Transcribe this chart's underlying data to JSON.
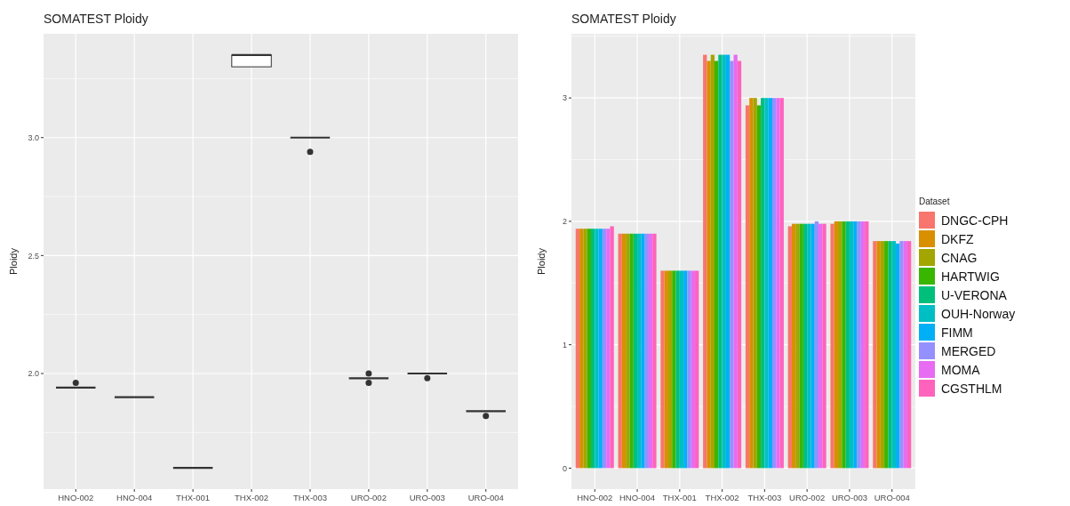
{
  "chart_data": [
    {
      "type": "box",
      "color": "#333333",
      "title": "SOMATEST Ploidy",
      "ylabel": "Ploidy",
      "categories": [
        "HNO-002",
        "HNO-004",
        "THX-001",
        "THX-002",
        "THX-003",
        "URO-002",
        "URO-003",
        "URO-004"
      ],
      "boxes": [
        {
          "low": 1.94,
          "q1": 1.94,
          "median": 1.94,
          "q3": 1.94,
          "high": 1.94
        },
        {
          "low": 1.9,
          "q1": 1.9,
          "median": 1.9,
          "q3": 1.9,
          "high": 1.9
        },
        {
          "low": 1.6,
          "q1": 1.6,
          "median": 1.6,
          "q3": 1.6,
          "high": 1.6
        },
        {
          "low": 3.3,
          "q1": 3.3,
          "median": 3.35,
          "q3": 3.35,
          "high": 3.35
        },
        {
          "low": 3.0,
          "q1": 3.0,
          "median": 3.0,
          "q3": 3.0,
          "high": 3.0
        },
        {
          "low": 1.98,
          "q1": 1.98,
          "median": 1.98,
          "q3": 1.98,
          "high": 1.98
        },
        {
          "low": 2.0,
          "q1": 2.0,
          "median": 2.0,
          "q3": 2.0,
          "high": 2.0
        },
        {
          "low": 1.84,
          "q1": 1.84,
          "median": 1.84,
          "q3": 1.84,
          "high": 1.84
        }
      ],
      "series": [
        {
          "type": "scatter",
          "color": "#333333",
          "marker": "circle",
          "x": [
            "HNO-002",
            "THX-003",
            "URO-002",
            "URO-002",
            "URO-003",
            "URO-004"
          ],
          "values": [
            1.96,
            2.94,
            1.96,
            2.0,
            1.98,
            1.82
          ]
        }
      ],
      "ylim": [
        1.51,
        3.44
      ],
      "yticks": [
        {
          "value": 2,
          "label": "2.0"
        },
        {
          "value": 2.5,
          "label": "2.5"
        },
        {
          "value": 3,
          "label": "3.0"
        }
      ],
      "grid": true,
      "legend": false
    },
    {
      "type": "bar",
      "title": "SOMATEST Ploidy",
      "ylabel": "Ploidy",
      "legend_title": "Dataset",
      "categories": [
        "HNO-002",
        "HNO-004",
        "THX-001",
        "THX-002",
        "THX-003",
        "URO-002",
        "URO-003",
        "URO-004"
      ],
      "series": [
        {
          "name": "DNGC-CPH",
          "color": "#f8766d",
          "values": [
            1.94,
            1.9,
            1.6,
            3.35,
            2.94,
            1.96,
            1.98,
            1.84
          ]
        },
        {
          "name": "DKFZ",
          "color": "#d89000",
          "values": [
            1.94,
            1.9,
            1.6,
            3.3,
            3.0,
            1.98,
            2.0,
            1.84
          ]
        },
        {
          "name": "CNAG",
          "color": "#a3a500",
          "values": [
            1.94,
            1.9,
            1.6,
            3.35,
            3.0,
            1.98,
            2.0,
            1.84
          ]
        },
        {
          "name": "HARTWIG",
          "color": "#39b600",
          "values": [
            1.94,
            1.9,
            1.6,
            3.3,
            2.94,
            1.98,
            2.0,
            1.84
          ]
        },
        {
          "name": "U-VERONA",
          "color": "#00bf7d",
          "values": [
            1.94,
            1.9,
            1.6,
            3.35,
            3.0,
            1.98,
            2.0,
            1.84
          ]
        },
        {
          "name": "OUH-Norway",
          "color": "#00bfc4",
          "values": [
            1.94,
            1.9,
            1.6,
            3.35,
            3.0,
            1.98,
            2.0,
            1.84
          ]
        },
        {
          "name": "FIMM",
          "color": "#00b0f6",
          "values": [
            1.94,
            1.9,
            1.6,
            3.35,
            3.0,
            1.98,
            2.0,
            1.82
          ]
        },
        {
          "name": "MERGED",
          "color": "#9590ff",
          "values": [
            1.94,
            1.9,
            1.6,
            3.3,
            3.0,
            2.0,
            2.0,
            1.84
          ]
        },
        {
          "name": "MOMA",
          "color": "#e76bf3",
          "values": [
            1.94,
            1.9,
            1.6,
            3.35,
            3.0,
            1.98,
            2.0,
            1.84
          ]
        },
        {
          "name": "CGSTHLM",
          "color": "#ff62bc",
          "values": [
            1.96,
            1.9,
            1.6,
            3.3,
            3.0,
            1.98,
            2.0,
            1.84
          ]
        }
      ],
      "ylim": [
        -0.17,
        3.52
      ],
      "yticks": [
        0,
        1,
        2,
        3
      ],
      "grid": true,
      "legend": "right"
    }
  ]
}
